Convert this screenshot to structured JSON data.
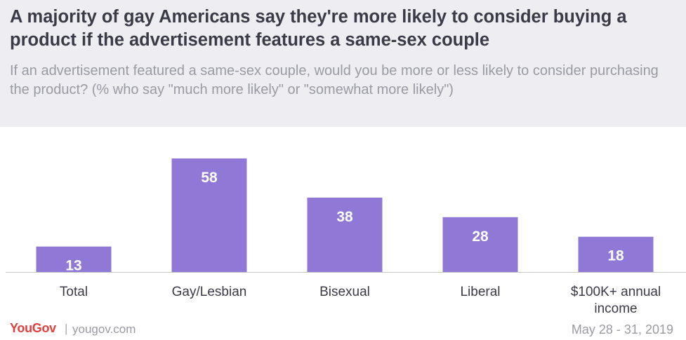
{
  "title": "A majority of gay Americans say they're more likely to consider buying a product if the advertisement features a same-sex couple",
  "subtitle": "If an advertisement featured a same-sex couple, would you be more or less likely to consider purchasing the product? (% who say \"much more likely\" or \"somewhat more likely\")",
  "footer": {
    "brand": "YouGov",
    "separator": "|",
    "site": "yougov.com",
    "date": "May 28 - 31, 2019"
  },
  "colors": {
    "bar": "#9079d6",
    "header_bg": "#ededf2",
    "title": "#3b3b47",
    "subtitle": "#9a9aa3",
    "brand": "#e2403d"
  },
  "chart_data": {
    "type": "bar",
    "categories": [
      "Total",
      "Gay/Lesbian",
      "Bisexual",
      "Liberal",
      "$100K+ annual income"
    ],
    "values": [
      13,
      58,
      38,
      28,
      18
    ],
    "title": "",
    "xlabel": "",
    "ylabel": "",
    "ylim": [
      0,
      58
    ],
    "grid": false,
    "data_labels": true
  }
}
